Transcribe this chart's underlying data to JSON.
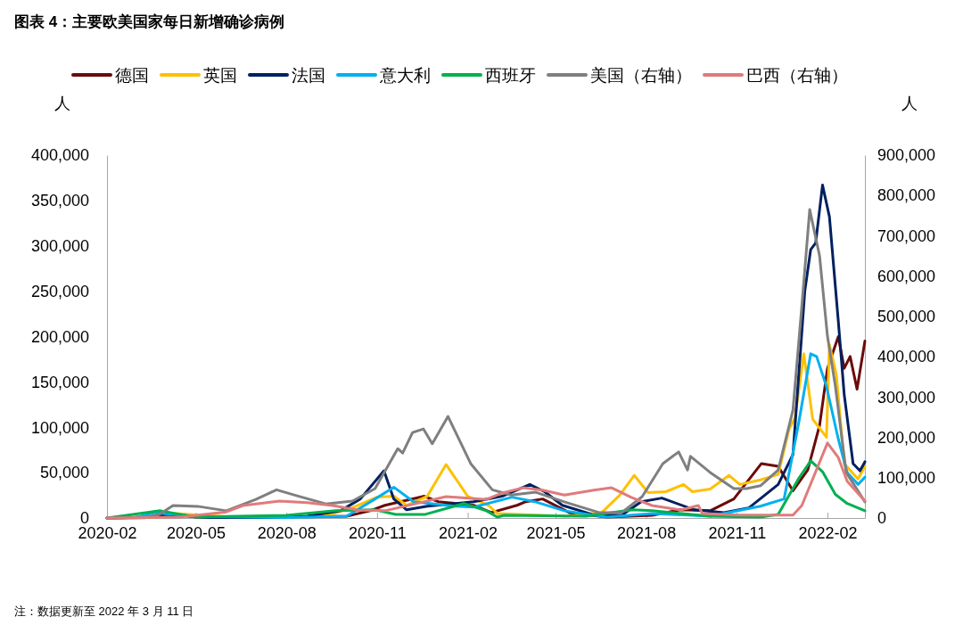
{
  "chart_data": {
    "type": "line",
    "title": "图表 4：主要欧美国家每日新增确诊病例",
    "ylabel": "人",
    "y2label": "人",
    "legend": "top",
    "annotations": [
      "注：数据更新至 2022 年 3 月 11 日"
    ],
    "xlim": [
      "2020-02-01",
      "2022-03-11"
    ],
    "xticks": [
      "2020-02",
      "2020-05",
      "2020-08",
      "2020-11",
      "2021-02",
      "2021-05",
      "2021-08",
      "2021-11",
      "2022-02"
    ],
    "ylim": [
      0,
      400000
    ],
    "yticks": [
      0,
      {
        "value": 50000,
        "label": "50,000"
      },
      {
        "value": 100000,
        "label": "100,000"
      },
      {
        "value": 150000,
        "label": "150,000"
      },
      {
        "value": 200000,
        "label": "200,000"
      },
      {
        "value": 250000,
        "label": "250,000"
      },
      {
        "value": 300000,
        "label": "300,000"
      },
      {
        "value": 350000,
        "label": "350,000"
      },
      {
        "value": 400000,
        "label": "400,000"
      }
    ],
    "y2lim": [
      0,
      900000
    ],
    "y2ticks": [
      0,
      {
        "value": 100000,
        "label": "100,000"
      },
      {
        "value": 200000,
        "label": "200,000"
      },
      {
        "value": 300000,
        "label": "300,000"
      },
      {
        "value": 400000,
        "label": "400,000"
      },
      {
        "value": 500000,
        "label": "500,000"
      },
      {
        "value": 600000,
        "label": "600,000"
      },
      {
        "value": 700000,
        "label": "700,000"
      },
      {
        "value": 800000,
        "label": "800,000"
      },
      {
        "value": 900000,
        "label": "900,000"
      }
    ],
    "series": [
      {
        "name": "德国",
        "color": "#6b0a0a",
        "x": [
          "2020-02-01",
          "2020-03-15",
          "2020-04-01",
          "2020-05-01",
          "2020-08-01",
          "2020-10-01",
          "2020-10-25",
          "2020-11-09",
          "2020-12-19",
          "2021-01-02",
          "2021-02-07",
          "2021-02-25",
          "2021-03-23",
          "2021-04-01",
          "2021-04-18",
          "2021-05-15",
          "2021-06-22",
          "2021-08-07",
          "2021-09-05",
          "2021-10-05",
          "2021-10-29",
          "2021-11-26",
          "2021-12-13",
          "2021-12-28",
          "2022-01-12",
          "2022-01-24",
          "2022-02-01",
          "2022-02-12",
          "2022-02-18",
          "2022-02-24",
          "2022-03-03",
          "2022-03-11"
        ],
        "values": [
          0,
          1000,
          6000,
          1000,
          1000,
          2000,
          8000,
          14000,
          24000,
          18000,
          14000,
          6000,
          14000,
          18000,
          21000,
          6000,
          1000,
          3000,
          9000,
          8000,
          21000,
          60000,
          57000,
          30000,
          53000,
          102000,
          165000,
          200000,
          165000,
          178000,
          142000,
          195000
        ]
      },
      {
        "name": "英国",
        "color": "#ffc000",
        "x": [
          "2020-02-01",
          "2020-03-15",
          "2020-04-10",
          "2020-06-01",
          "2020-08-15",
          "2020-09-15",
          "2020-10-06",
          "2020-11-01",
          "2020-11-18",
          "2020-12-01",
          "2020-12-22",
          "2021-01-10",
          "2021-02-01",
          "2021-02-22",
          "2021-03-03",
          "2021-05-12",
          "2021-06-17",
          "2021-07-05",
          "2021-07-20",
          "2021-08-03",
          "2021-08-21",
          "2021-09-08",
          "2021-09-17",
          "2021-10-05",
          "2021-10-24",
          "2021-11-04",
          "2021-11-25",
          "2021-12-13",
          "2021-12-24",
          "2021-12-30",
          "2022-01-08",
          "2022-01-17",
          "2022-01-31",
          "2022-02-03",
          "2022-02-10",
          "2022-02-18",
          "2022-03-04",
          "2022-03-11"
        ],
        "values": [
          0,
          500,
          5000,
          1500,
          1000,
          4000,
          11000,
          23000,
          24000,
          14000,
          24000,
          59000,
          24000,
          14000,
          5000,
          2000,
          6000,
          25000,
          47000,
          28000,
          29000,
          37000,
          29000,
          32000,
          47000,
          37000,
          42000,
          48000,
          98000,
          110000,
          181000,
          109000,
          89000,
          191000,
          158000,
          60000,
          43000,
          57000
        ]
      },
      {
        "name": "法国",
        "color": "#002060",
        "x": [
          "2020-02-01",
          "2020-03-15",
          "2020-04-01",
          "2020-05-15",
          "2020-07-15",
          "2020-08-22",
          "2020-09-25",
          "2020-10-15",
          "2020-11-08",
          "2020-11-18",
          "2020-12-01",
          "2020-12-22",
          "2021-01-20",
          "2021-02-07",
          "2021-03-08",
          "2021-04-05",
          "2021-04-20",
          "2021-05-08",
          "2021-06-07",
          "2021-07-07",
          "2021-07-27",
          "2021-08-17",
          "2021-09-19",
          "2021-10-19",
          "2021-11-13",
          "2021-12-13",
          "2021-12-28",
          "2022-01-09",
          "2022-01-15",
          "2022-01-20",
          "2022-01-27",
          "2022-02-03",
          "2022-02-12",
          "2022-02-18",
          "2022-02-27",
          "2022-03-06",
          "2022-03-11"
        ],
        "values": [
          0,
          1000,
          4000,
          500,
          500,
          2000,
          8000,
          21000,
          52000,
          21000,
          9000,
          13000,
          16000,
          18000,
          24000,
          37000,
          29000,
          14000,
          4000,
          3000,
          18000,
          22000,
          9000,
          6000,
          11000,
          37000,
          70000,
          250000,
          296000,
          303000,
          367000,
          332000,
          217000,
          136000,
          60000,
          52000,
          62000
        ]
      },
      {
        "name": "意大利",
        "color": "#00b0f0",
        "x": [
          "2020-02-01",
          "2020-03-01",
          "2020-03-21",
          "2020-05-01",
          "2020-08-01",
          "2020-10-01",
          "2020-10-30",
          "2020-11-18",
          "2020-12-08",
          "2021-01-20",
          "2021-02-07",
          "2021-03-18",
          "2021-04-10",
          "2021-05-10",
          "2021-06-22",
          "2021-08-07",
          "2021-10-05",
          "2021-11-25",
          "2021-12-19",
          "2022-01-03",
          "2022-01-15",
          "2022-01-21",
          "2022-01-31",
          "2022-02-12",
          "2022-02-21",
          "2022-03-04",
          "2022-03-11"
        ],
        "values": [
          0,
          500,
          6000,
          1500,
          500,
          2000,
          21000,
          34000,
          18000,
          13000,
          12000,
          23000,
          18000,
          8000,
          1000,
          5000,
          2000,
          13000,
          21000,
          106000,
          181000,
          178000,
          145000,
          87000,
          50000,
          37000,
          45000
        ]
      },
      {
        "name": "西班牙",
        "color": "#00b050",
        "x": [
          "2020-02-01",
          "2020-03-26",
          "2020-05-01",
          "2020-08-01",
          "2020-09-20",
          "2020-10-30",
          "2020-11-20",
          "2020-12-20",
          "2021-01-28",
          "2021-02-20",
          "2021-03-03",
          "2021-03-10",
          "2021-06-01",
          "2021-07-18",
          "2021-08-07",
          "2021-10-05",
          "2021-11-25",
          "2021-12-13",
          "2022-01-03",
          "2022-01-15",
          "2022-01-27",
          "2022-02-09",
          "2022-02-21",
          "2022-03-11"
        ],
        "values": [
          0,
          8000,
          1000,
          3000,
          8000,
          9000,
          4000,
          4000,
          16000,
          8000,
          1000,
          3000,
          2000,
          9000,
          8000,
          2000,
          1000,
          4000,
          44000,
          63000,
          51000,
          26000,
          16000,
          8000
        ]
      },
      {
        "name": "美国（右轴）",
        "color": "#7f7f7f",
        "axis": "y2",
        "x": [
          "2020-02-01",
          "2020-03-10",
          "2020-03-25",
          "2020-04-08",
          "2020-05-03",
          "2020-06-01",
          "2020-07-01",
          "2020-07-22",
          "2020-08-12",
          "2020-09-10",
          "2020-10-07",
          "2020-10-30",
          "2020-11-22",
          "2020-11-27",
          "2020-12-07",
          "2020-12-18",
          "2020-12-27",
          "2021-01-12",
          "2021-02-04",
          "2021-02-26",
          "2021-03-17",
          "2021-04-11",
          "2021-05-10",
          "2021-06-15",
          "2021-07-07",
          "2021-07-28",
          "2021-08-18",
          "2021-09-03",
          "2021-09-12",
          "2021-09-15",
          "2021-10-05",
          "2021-10-29",
          "2021-11-11",
          "2021-11-25",
          "2021-12-13",
          "2021-12-28",
          "2022-01-06",
          "2022-01-14",
          "2022-01-24",
          "2022-02-01",
          "2022-02-09",
          "2022-02-20",
          "2022-03-11"
        ],
        "values": [
          0,
          500,
          9000,
          31000,
          29000,
          18000,
          46000,
          70000,
          55000,
          35000,
          42000,
          73000,
          172000,
          161000,
          212000,
          221000,
          184000,
          252000,
          135000,
          70000,
          57000,
          64000,
          40000,
          13000,
          13000,
          53000,
          135000,
          164000,
          119000,
          153000,
          113000,
          73000,
          73000,
          80000,
          119000,
          268000,
          526000,
          765000,
          650000,
          451000,
          327000,
          113000,
          40000
        ]
      },
      {
        "name": "巴西（右轴）",
        "color": "#e07b7b",
        "axis": "y2",
        "x": [
          "2020-02-01",
          "2020-04-15",
          "2020-06-01",
          "2020-06-18",
          "2020-07-25",
          "2020-08-22",
          "2020-09-17",
          "2020-10-12",
          "2020-11-09",
          "2020-11-20",
          "2021-01-10",
          "2021-02-20",
          "2021-03-08",
          "2021-03-29",
          "2021-04-18",
          "2021-05-10",
          "2021-06-09",
          "2021-06-27",
          "2021-07-17",
          "2021-08-07",
          "2021-09-05",
          "2021-09-23",
          "2021-09-27",
          "2021-11-04",
          "2021-12-28",
          "2022-01-06",
          "2022-02-01",
          "2022-02-12",
          "2022-02-21",
          "2022-03-11"
        ],
        "values": [
          0,
          2000,
          15000,
          31000,
          42000,
          38000,
          31000,
          20000,
          18000,
          24000,
          53000,
          46000,
          62000,
          75000,
          69000,
          57000,
          69000,
          75000,
          51000,
          31000,
          20000,
          31000,
          11000,
          7000,
          7000,
          31000,
          186000,
          150000,
          91000,
          42000
        ]
      }
    ]
  }
}
